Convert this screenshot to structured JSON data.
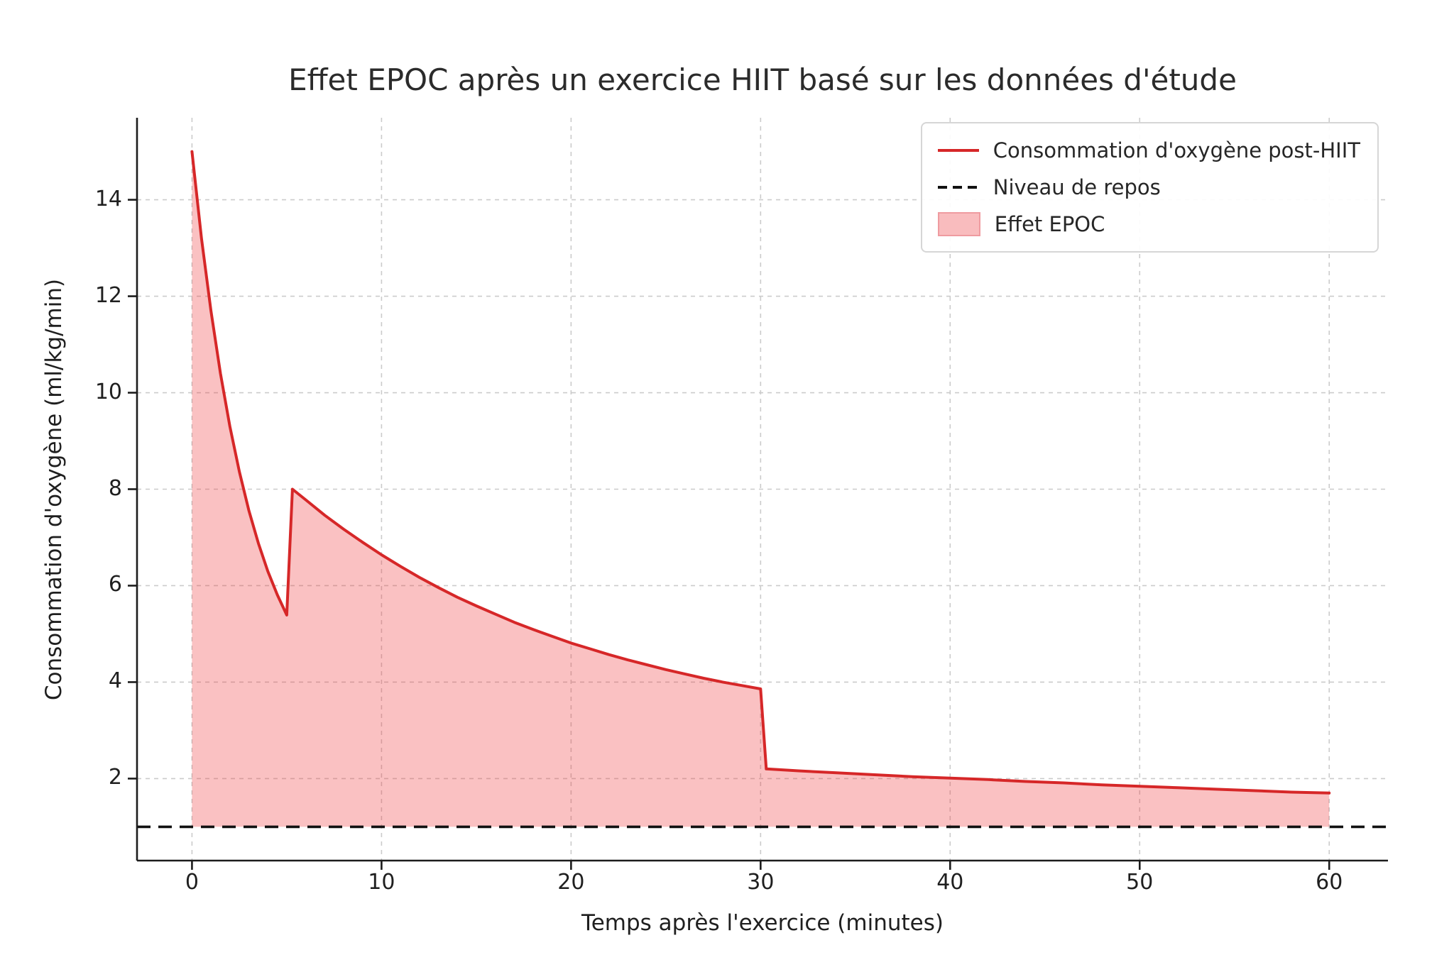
{
  "chart_data": {
    "type": "area",
    "title": "Effet EPOC après un exercice HIIT basé sur les données d'étude",
    "xlabel": "Temps après l'exercice (minutes)",
    "ylabel": "Consommation d'oxygène (ml/kg/min)",
    "xlim": [
      -2.9,
      63.1
    ],
    "ylim": [
      0.3,
      15.7
    ],
    "xticks": [
      0,
      10,
      20,
      30,
      40,
      50,
      60
    ],
    "yticks": [
      2,
      4,
      6,
      8,
      10,
      12,
      14
    ],
    "grid": true,
    "legend_position": "upper right",
    "rest_level": 1.0,
    "line_color": "#d62728",
    "line_width": 4,
    "fill_color": "rgba(240,62,66,0.32)",
    "rest_color": "#111111",
    "fill_baseline": 1.0,
    "series": [
      {
        "name": "Consommation d'oxygène post-HIIT",
        "points": [
          [
            0,
            15.0
          ],
          [
            0.5,
            13.2
          ],
          [
            1,
            11.7
          ],
          [
            1.5,
            10.4
          ],
          [
            2,
            9.3
          ],
          [
            2.5,
            8.36
          ],
          [
            3,
            7.56
          ],
          [
            3.5,
            6.88
          ],
          [
            4,
            6.3
          ],
          [
            4.5,
            5.81
          ],
          [
            5,
            5.39
          ],
          [
            5.3,
            8.0
          ],
          [
            6,
            7.78
          ],
          [
            7,
            7.46
          ],
          [
            8,
            7.17
          ],
          [
            9,
            6.9
          ],
          [
            10,
            6.64
          ],
          [
            11,
            6.4
          ],
          [
            12,
            6.17
          ],
          [
            13,
            5.96
          ],
          [
            14,
            5.76
          ],
          [
            15,
            5.58
          ],
          [
            16,
            5.41
          ],
          [
            17,
            5.24
          ],
          [
            18,
            5.09
          ],
          [
            19,
            4.95
          ],
          [
            20,
            4.81
          ],
          [
            21,
            4.69
          ],
          [
            22,
            4.57
          ],
          [
            23,
            4.46
          ],
          [
            24,
            4.36
          ],
          [
            25,
            4.26
          ],
          [
            26,
            4.17
          ],
          [
            27,
            4.08
          ],
          [
            28,
            4.0
          ],
          [
            29,
            3.93
          ],
          [
            30,
            3.86
          ],
          [
            30.3,
            2.2
          ],
          [
            32,
            2.16
          ],
          [
            34,
            2.12
          ],
          [
            36,
            2.08
          ],
          [
            38,
            2.04
          ],
          [
            40,
            2.01
          ],
          [
            42,
            1.98
          ],
          [
            44,
            1.94
          ],
          [
            46,
            1.91
          ],
          [
            48,
            1.87
          ],
          [
            50,
            1.84
          ],
          [
            52,
            1.81
          ],
          [
            54,
            1.78
          ],
          [
            56,
            1.75
          ],
          [
            58,
            1.72
          ],
          [
            60,
            1.7
          ]
        ]
      }
    ]
  },
  "legend": {
    "items": [
      {
        "label": "Consommation d'oxygène post-HIIT",
        "swatch": "line",
        "color": "#d62728"
      },
      {
        "label": "Niveau de repos",
        "swatch": "dashed-line",
        "color": "#111111"
      },
      {
        "label": "Effet EPOC",
        "swatch": "patch",
        "color": "#f9bcbe",
        "border": "#ef9ba0"
      }
    ]
  }
}
